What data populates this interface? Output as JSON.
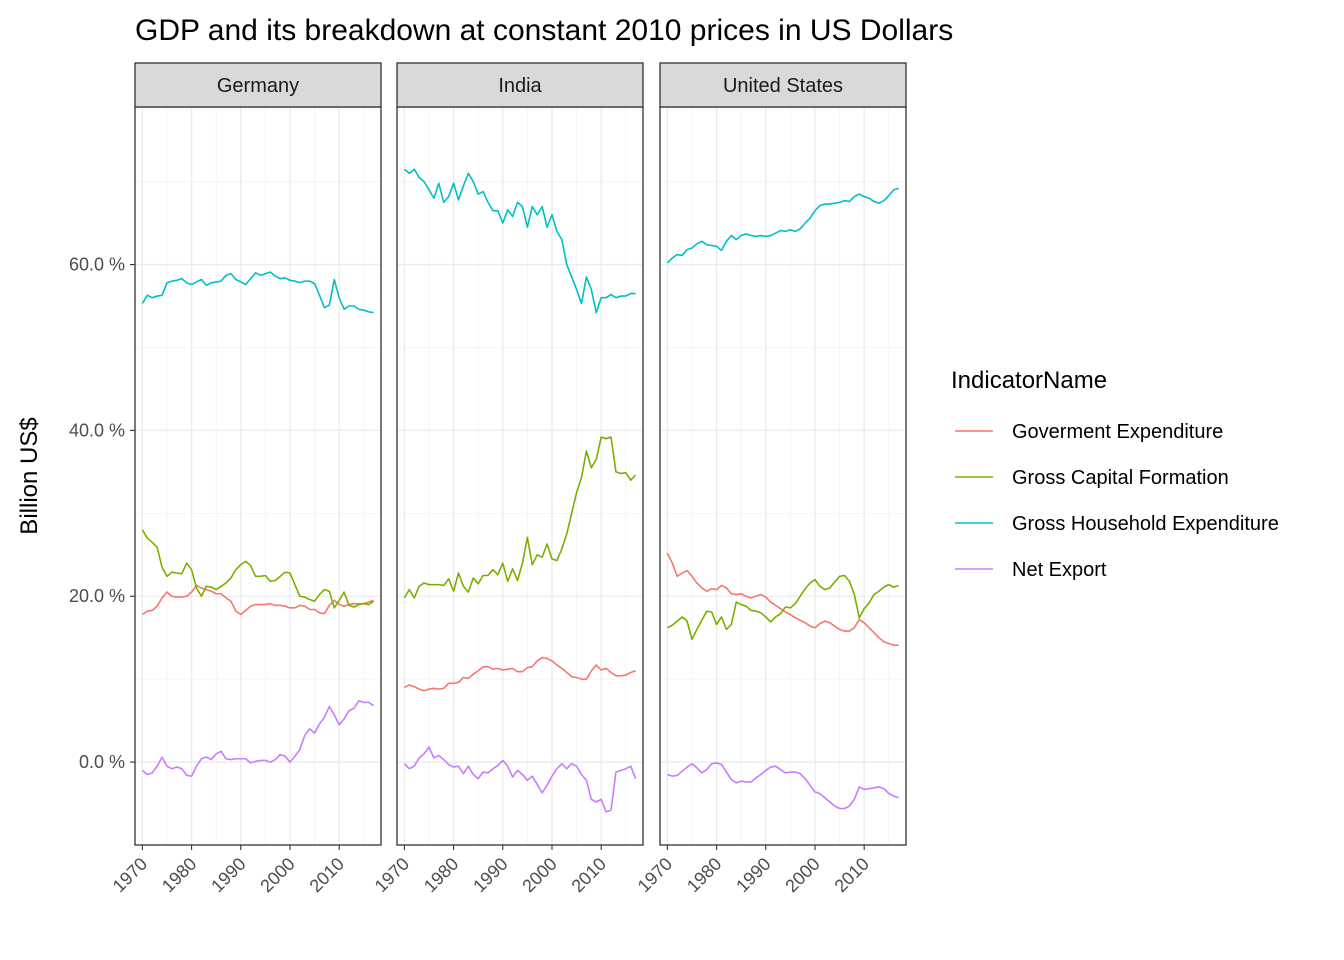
{
  "chart_data": {
    "type": "line",
    "title": "GDP and its breakdown at constant 2010 prices in US Dollars",
    "xlabel": "",
    "ylabel": "Billion US$",
    "xlim": [
      1968.5,
      2018.5
    ],
    "ylim": [
      -10,
      79
    ],
    "x_ticks": [
      1970,
      1980,
      1990,
      2000,
      2010
    ],
    "y_ticks": [
      0,
      20,
      40,
      60
    ],
    "y_tick_labels": [
      "0.0 %",
      "20.0 %",
      "40.0 %",
      "60.0 %"
    ],
    "grid": true,
    "legend": {
      "title": "IndicatorName",
      "position": "right",
      "entries": [
        "Goverment Expenditure",
        "Gross Capital Formation",
        "Gross Household Expenditure",
        "Net Export"
      ]
    },
    "colors": {
      "Goverment Expenditure": "#F8766D",
      "Gross Capital Formation": "#7CAE00",
      "Gross Household Expenditure": "#00BFC4",
      "Net Export": "#C77CFF"
    },
    "x": [
      1970,
      1971,
      1972,
      1973,
      1974,
      1975,
      1976,
      1977,
      1978,
      1979,
      1980,
      1981,
      1982,
      1983,
      1984,
      1985,
      1986,
      1987,
      1988,
      1989,
      1990,
      1991,
      1992,
      1993,
      1994,
      1995,
      1996,
      1997,
      1998,
      1999,
      2000,
      2001,
      2002,
      2003,
      2004,
      2005,
      2006,
      2007,
      2008,
      2009,
      2010,
      2011,
      2012,
      2013,
      2014,
      2015,
      2016,
      2017
    ],
    "panels": [
      {
        "name": "Germany",
        "series": [
          {
            "name": "Goverment Expenditure",
            "values": [
              17.8,
              18.2,
              18.3,
              18.8,
              19.8,
              20.5,
              20.0,
              19.9,
              19.9,
              20.0,
              20.5,
              21.3,
              21.0,
              20.8,
              20.6,
              20.3,
              20.3,
              19.8,
              19.4,
              18.2,
              17.8,
              18.3,
              18.8,
              19.0,
              19.0,
              19.0,
              19.1,
              18.9,
              18.9,
              18.8,
              18.6,
              18.6,
              18.9,
              18.8,
              18.4,
              18.4,
              18.0,
              17.9,
              18.9,
              19.5,
              19.0,
              18.8,
              19.0,
              19.1,
              19.1,
              19.1,
              19.3,
              19.5
            ]
          },
          {
            "name": "Gross Capital Formation",
            "values": [
              28.0,
              27.0,
              26.5,
              25.9,
              23.5,
              22.4,
              22.9,
              22.8,
              22.7,
              24.0,
              23.2,
              21.0,
              20.0,
              21.2,
              21.1,
              20.8,
              21.2,
              21.6,
              22.2,
              23.2,
              23.8,
              24.2,
              23.7,
              22.4,
              22.4,
              22.5,
              21.8,
              21.9,
              22.4,
              22.9,
              22.8,
              21.4,
              20.0,
              19.9,
              19.6,
              19.4,
              20.2,
              20.8,
              20.6,
              18.6,
              19.5,
              20.5,
              18.9,
              18.7,
              19.0,
              19.1,
              19.0,
              19.4
            ]
          },
          {
            "name": "Gross Household Expenditure",
            "values": [
              55.3,
              56.3,
              56.0,
              56.2,
              56.3,
              57.8,
              58.0,
              58.1,
              58.3,
              57.8,
              57.6,
              57.9,
              58.2,
              57.5,
              57.8,
              57.9,
              58.0,
              58.7,
              58.9,
              58.2,
              57.9,
              57.6,
              58.3,
              59.0,
              58.7,
              58.9,
              59.1,
              58.6,
              58.3,
              58.4,
              58.1,
              58.0,
              57.8,
              58.0,
              58.0,
              57.7,
              56.3,
              54.8,
              55.1,
              58.2,
              56.0,
              54.6,
              55.0,
              55.0,
              54.6,
              54.5,
              54.3,
              54.2
            ]
          },
          {
            "name": "Net Export",
            "values": [
              -1.0,
              -1.5,
              -1.3,
              -0.5,
              0.6,
              -0.5,
              -0.8,
              -0.6,
              -0.8,
              -1.6,
              -1.7,
              -0.5,
              0.4,
              0.6,
              0.3,
              1.0,
              1.3,
              0.4,
              0.3,
              0.4,
              0.4,
              0.4,
              -0.1,
              0.1,
              0.2,
              0.2,
              0.0,
              0.3,
              0.9,
              0.7,
              0.0,
              0.7,
              1.5,
              3.2,
              4.0,
              3.5,
              4.6,
              5.4,
              6.7,
              5.7,
              4.5,
              5.2,
              6.2,
              6.5,
              7.4,
              7.2,
              7.2,
              6.8
            ]
          }
        ]
      },
      {
        "name": "India",
        "series": [
          {
            "name": "Goverment Expenditure",
            "values": [
              9.0,
              9.3,
              9.1,
              8.8,
              8.6,
              8.8,
              8.9,
              8.8,
              8.9,
              9.5,
              9.5,
              9.6,
              10.2,
              10.1,
              10.6,
              11.0,
              11.5,
              11.5,
              11.2,
              11.3,
              11.1,
              11.2,
              11.3,
              10.9,
              10.9,
              11.4,
              11.5,
              12.2,
              12.6,
              12.5,
              12.2,
              11.7,
              11.3,
              10.8,
              10.3,
              10.2,
              10.0,
              10.0,
              11.0,
              11.7,
              11.1,
              11.3,
              10.8,
              10.4,
              10.4,
              10.5,
              10.8,
              11.0
            ]
          },
          {
            "name": "Gross Capital Formation",
            "values": [
              19.8,
              20.8,
              19.8,
              21.2,
              21.6,
              21.4,
              21.4,
              21.4,
              21.3,
              22.1,
              20.6,
              22.8,
              21.2,
              20.5,
              22.2,
              21.5,
              22.5,
              22.5,
              23.2,
              22.6,
              24.0,
              21.8,
              23.3,
              21.9,
              24.0,
              27.1,
              23.8,
              25.0,
              24.7,
              26.3,
              24.5,
              24.3,
              25.7,
              27.5,
              30.0,
              32.5,
              34.3,
              37.5,
              35.5,
              36.5,
              39.2,
              39.0,
              39.2,
              35.0,
              34.8,
              34.9,
              34.0,
              34.6
            ]
          },
          {
            "name": "Gross Household Expenditure",
            "values": [
              71.5,
              71.0,
              71.5,
              70.5,
              70.0,
              69.0,
              68.0,
              69.8,
              67.5,
              68.2,
              69.8,
              67.8,
              69.5,
              71.0,
              70.0,
              68.5,
              68.8,
              67.5,
              66.5,
              66.5,
              65.0,
              66.6,
              65.8,
              67.5,
              67.0,
              64.5,
              67.0,
              66.0,
              67.0,
              64.5,
              66.0,
              64.0,
              63.0,
              60.0,
              58.5,
              57.0,
              55.3,
              58.5,
              57.0,
              54.2,
              56.0,
              56.0,
              56.4,
              56.0,
              56.2,
              56.2,
              56.5,
              56.5
            ]
          },
          {
            "name": "Net Export",
            "values": [
              -0.2,
              -0.8,
              -0.5,
              0.5,
              1.0,
              1.8,
              0.5,
              0.8,
              0.3,
              -0.3,
              -0.6,
              -0.5,
              -1.4,
              -0.5,
              -1.5,
              -2.0,
              -1.2,
              -1.3,
              -0.8,
              -0.4,
              0.2,
              -0.5,
              -1.8,
              -1.0,
              -1.5,
              -2.2,
              -1.7,
              -2.7,
              -3.7,
              -2.8,
              -1.7,
              -0.8,
              -0.2,
              -0.8,
              -0.2,
              -0.5,
              -1.5,
              -2.2,
              -4.5,
              -4.8,
              -4.5,
              -6.0,
              -5.8,
              -1.2,
              -1.0,
              -0.8,
              -0.5,
              -2.0
            ]
          }
        ]
      },
      {
        "name": "United States",
        "series": [
          {
            "name": "Goverment Expenditure",
            "values": [
              25.2,
              24.0,
              22.4,
              22.8,
              23.1,
              22.4,
              21.6,
              21.0,
              20.6,
              20.9,
              20.8,
              21.3,
              21.0,
              20.3,
              20.2,
              20.3,
              20.0,
              19.8,
              20.0,
              20.2,
              19.9,
              19.3,
              18.9,
              18.5,
              18.1,
              17.8,
              17.4,
              17.1,
              16.8,
              16.4,
              16.2,
              16.7,
              17.0,
              16.8,
              16.4,
              16.0,
              15.8,
              15.8,
              16.2,
              17.2,
              16.8,
              16.2,
              15.6,
              15.0,
              14.5,
              14.3,
              14.1,
              14.1
            ]
          },
          {
            "name": "Gross Capital Formation",
            "values": [
              16.2,
              16.5,
              17.0,
              17.5,
              17.0,
              14.8,
              16.0,
              17.1,
              18.2,
              18.1,
              16.6,
              17.5,
              16.0,
              16.6,
              19.3,
              19.0,
              18.8,
              18.3,
              18.2,
              18.0,
              17.5,
              16.9,
              17.5,
              17.9,
              18.7,
              18.6,
              19.1,
              20.0,
              20.9,
              21.6,
              22.0,
              21.2,
              20.8,
              21.0,
              21.7,
              22.4,
              22.5,
              21.8,
              20.2,
              17.4,
              18.5,
              19.2,
              20.2,
              20.6,
              21.1,
              21.4,
              21.1,
              21.3
            ]
          },
          {
            "name": "Gross Household Expenditure",
            "values": [
              60.2,
              60.8,
              61.2,
              61.1,
              61.8,
              62.0,
              62.5,
              62.8,
              62.4,
              62.3,
              62.2,
              61.7,
              62.8,
              63.5,
              63.0,
              63.5,
              63.7,
              63.5,
              63.4,
              63.5,
              63.4,
              63.5,
              63.8,
              64.1,
              64.0,
              64.2,
              64.0,
              64.3,
              65.0,
              65.6,
              66.5,
              67.1,
              67.3,
              67.3,
              67.4,
              67.5,
              67.7,
              67.6,
              68.2,
              68.5,
              68.2,
              68.0,
              67.6,
              67.4,
              67.7,
              68.3,
              69.0,
              69.2
            ]
          },
          {
            "name": "Net Export",
            "values": [
              -1.5,
              -1.7,
              -1.6,
              -1.1,
              -0.6,
              -0.2,
              -0.7,
              -1.3,
              -0.9,
              -0.2,
              -0.1,
              -0.3,
              -1.2,
              -2.1,
              -2.5,
              -2.3,
              -2.4,
              -2.4,
              -1.9,
              -1.5,
              -1.0,
              -0.6,
              -0.5,
              -0.9,
              -1.3,
              -1.2,
              -1.2,
              -1.4,
              -2.0,
              -2.8,
              -3.6,
              -3.8,
              -4.3,
              -4.8,
              -5.3,
              -5.6,
              -5.6,
              -5.3,
              -4.5,
              -3.0,
              -3.3,
              -3.2,
              -3.1,
              -3.0,
              -3.2,
              -3.8,
              -4.1,
              -4.3
            ]
          }
        ]
      }
    ]
  }
}
